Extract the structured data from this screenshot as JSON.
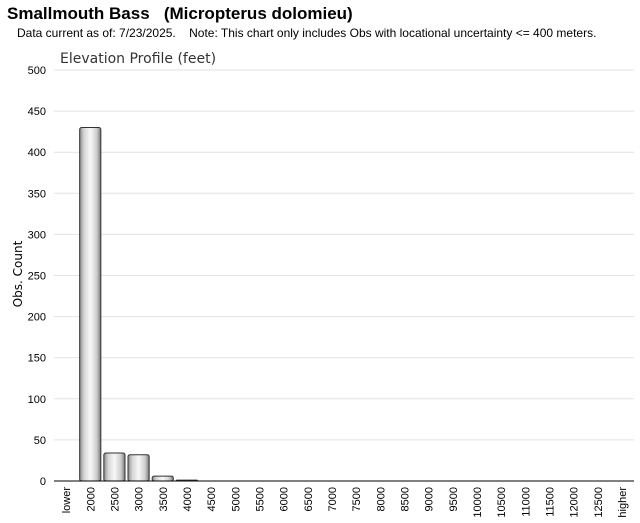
{
  "header": {
    "title": "Smallmouth Bass   (Micropterus dolomieu)",
    "subtitle": "Data current as of: 7/23/2025.    Note: This chart only includes Obs with locational uncertainty <= 400 meters."
  },
  "chart_data": {
    "type": "bar",
    "title": "Elevation Profile (feet)",
    "xlabel": "",
    "ylabel": "Obs. Count",
    "ylim": [
      0,
      500
    ],
    "yticks": [
      0,
      50,
      100,
      150,
      200,
      250,
      300,
      350,
      400,
      450,
      500
    ],
    "grid": true,
    "categories": [
      "lower",
      "2000",
      "2500",
      "3000",
      "3500",
      "4000",
      "4500",
      "5000",
      "5500",
      "6000",
      "6500",
      "7000",
      "7500",
      "8000",
      "8500",
      "9000",
      "9500",
      "10000",
      "10500",
      "11000",
      "11500",
      "12000",
      "12500",
      "higher"
    ],
    "values": [
      0,
      430,
      34,
      32,
      6,
      1,
      0,
      0,
      0,
      0,
      0,
      0,
      0,
      0,
      0,
      0,
      0,
      0,
      0,
      0,
      0,
      0,
      0,
      0
    ],
    "bar_color": "#c8c8c8"
  }
}
